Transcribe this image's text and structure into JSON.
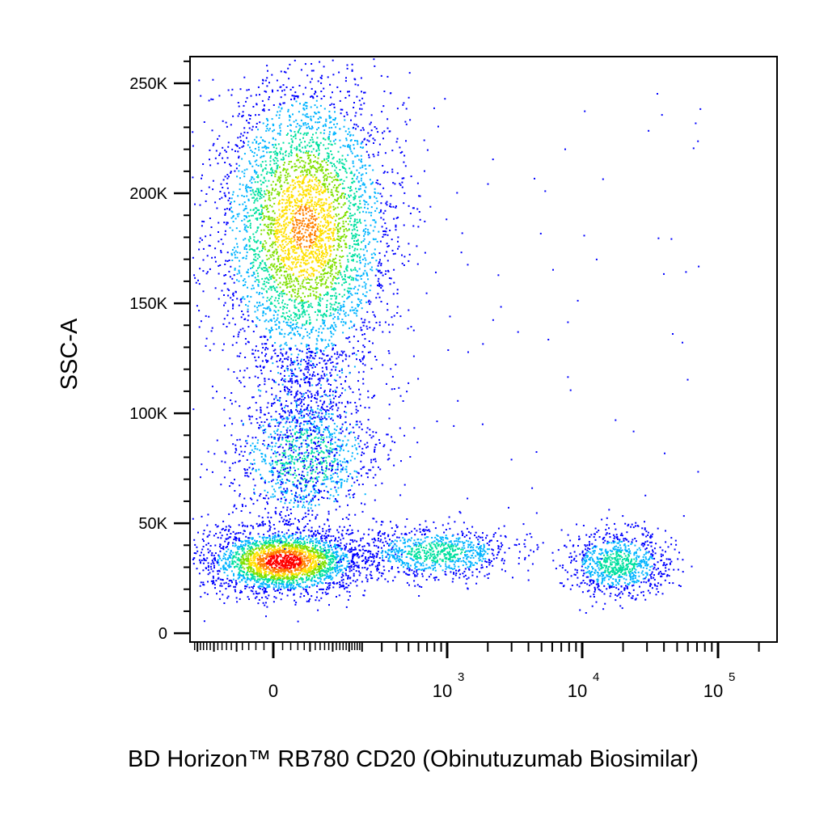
{
  "chart_data": {
    "type": "scatter",
    "style": "flow-cytometry density pseudocolor dot plot",
    "title": "",
    "xlabel": "BD Horizon™ RB780 CD20 (Obinutuzumab Biosimilar)",
    "ylabel": "SSC-A",
    "x_scale": "biexponential",
    "y_scale": "linear",
    "xlim": [
      -200,
      200000
    ],
    "ylim": [
      -4000,
      262144
    ],
    "y_ticks": [
      {
        "value": 0,
        "label": "0"
      },
      {
        "value": 50000,
        "label": "50K"
      },
      {
        "value": 100000,
        "label": "100K"
      },
      {
        "value": 150000,
        "label": "150K"
      },
      {
        "value": 200000,
        "label": "200K"
      },
      {
        "value": 250000,
        "label": "250K"
      }
    ],
    "x_ticks": [
      {
        "value": 0,
        "label": "0",
        "exp": ""
      },
      {
        "value": 1000,
        "label": "10",
        "exp": "3"
      },
      {
        "value": 10000,
        "label": "10",
        "exp": "4"
      },
      {
        "value": 100000,
        "label": "10",
        "exp": "5"
      }
    ],
    "color_scale": [
      "#0000ff",
      "#00b4ff",
      "#00e0a0",
      "#80e000",
      "#ffe000",
      "#ff8000",
      "#ff0000"
    ],
    "populations": [
      {
        "center": [
          10,
          33000
        ],
        "x_spread": [
          -160,
          200
        ],
        "y_spread": [
          20000,
          52000
        ],
        "density": "high",
        "peak_color": "#ff0000"
      },
      {
        "center": [
          40,
          185000
        ],
        "x_spread": [
          -150,
          300
        ],
        "y_spread": [
          120000,
          262000
        ],
        "density": "medium",
        "peak_color": "#c0e000"
      },
      {
        "center": [
          40,
          80000
        ],
        "x_spread": [
          -120,
          260
        ],
        "y_spread": [
          50000,
          120000
        ],
        "density": "low",
        "peak_color": "#00c0ff"
      },
      {
        "center": [
          800,
          37000
        ],
        "x_spread": [
          200,
          4000
        ],
        "y_spread": [
          25000,
          50000
        ],
        "density": "low",
        "peak_color": "#00b0ff"
      },
      {
        "center": [
          18000,
          32000
        ],
        "x_spread": [
          9000,
          55000
        ],
        "y_spread": [
          24000,
          55000
        ],
        "density": "low",
        "peak_color": "#40d0a0"
      }
    ]
  }
}
